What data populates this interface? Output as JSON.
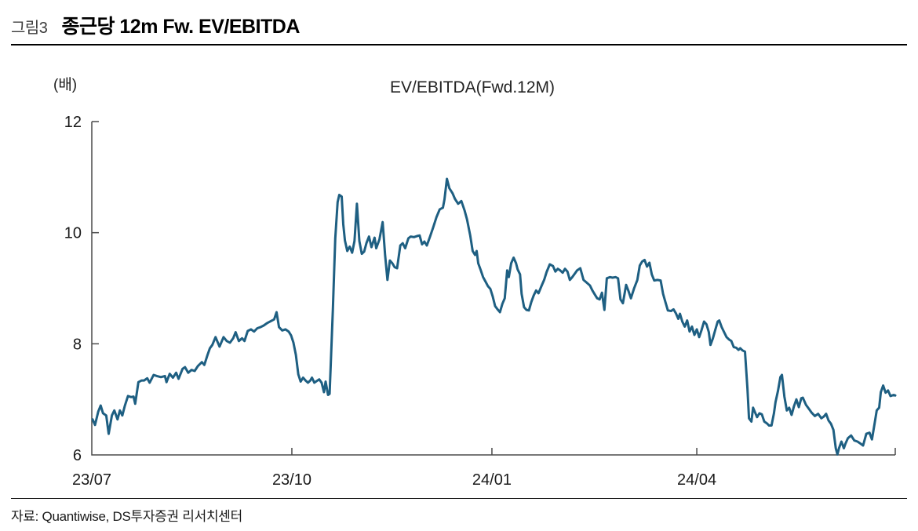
{
  "figure": {
    "label": "그림3",
    "title": "종근당 12m Fw. EV/EBITDA"
  },
  "footer": {
    "source": "자료: Quantiwise, DS투자증권 리서치센터"
  },
  "chart_data": {
    "type": "line",
    "title": "EV/EBITDA(Fwd.12M)",
    "y_unit_label": "(배)",
    "ylim": [
      6,
      12
    ],
    "yticks": [
      12,
      10,
      8,
      6
    ],
    "x_range": [
      "2023-07",
      "2024-07"
    ],
    "xticks": [
      {
        "label": "23/07",
        "t": 0
      },
      {
        "label": "23/10",
        "t": 0.249
      },
      {
        "label": "24/01",
        "t": 0.498
      },
      {
        "label": "24/04",
        "t": 0.753
      },
      {
        "label": "",
        "t": 1
      }
    ],
    "grid": false,
    "legend": "none",
    "colors": {
      "line": "#1E5F82",
      "axis": "#4A4A4A",
      "text": "#1A1A1A"
    },
    "series": [
      {
        "name": "EV/EBITDA(Fwd.12M)",
        "points": [
          [
            0.001,
            6.64
          ],
          [
            0.004,
            6.54
          ],
          [
            0.008,
            6.78
          ],
          [
            0.011,
            6.89
          ],
          [
            0.014,
            6.75
          ],
          [
            0.018,
            6.71
          ],
          [
            0.021,
            6.38
          ],
          [
            0.025,
            6.71
          ],
          [
            0.028,
            6.8
          ],
          [
            0.032,
            6.64
          ],
          [
            0.035,
            6.8
          ],
          [
            0.038,
            6.71
          ],
          [
            0.041,
            6.88
          ],
          [
            0.045,
            7.06
          ],
          [
            0.049,
            7.04
          ],
          [
            0.052,
            7.05
          ],
          [
            0.054,
            6.92
          ],
          [
            0.058,
            7.31
          ],
          [
            0.062,
            7.34
          ],
          [
            0.065,
            7.34
          ],
          [
            0.069,
            7.38
          ],
          [
            0.072,
            7.3
          ],
          [
            0.077,
            7.44
          ],
          [
            0.081,
            7.42
          ],
          [
            0.086,
            7.4
          ],
          [
            0.091,
            7.42
          ],
          [
            0.093,
            7.31
          ],
          [
            0.097,
            7.46
          ],
          [
            0.101,
            7.39
          ],
          [
            0.105,
            7.48
          ],
          [
            0.108,
            7.37
          ],
          [
            0.113,
            7.55
          ],
          [
            0.116,
            7.58
          ],
          [
            0.12,
            7.48
          ],
          [
            0.124,
            7.53
          ],
          [
            0.128,
            7.51
          ],
          [
            0.132,
            7.6
          ],
          [
            0.137,
            7.67
          ],
          [
            0.14,
            7.62
          ],
          [
            0.144,
            7.8
          ],
          [
            0.147,
            7.92
          ],
          [
            0.15,
            7.98
          ],
          [
            0.154,
            8.12
          ],
          [
            0.159,
            7.95
          ],
          [
            0.164,
            8.12
          ],
          [
            0.168,
            8.05
          ],
          [
            0.172,
            8.02
          ],
          [
            0.176,
            8.1
          ],
          [
            0.179,
            8.21
          ],
          [
            0.183,
            8.05
          ],
          [
            0.187,
            8.1
          ],
          [
            0.19,
            8.05
          ],
          [
            0.194,
            8.23
          ],
          [
            0.198,
            8.26
          ],
          [
            0.202,
            8.22
          ],
          [
            0.206,
            8.28
          ],
          [
            0.21,
            8.3
          ],
          [
            0.214,
            8.33
          ],
          [
            0.218,
            8.37
          ],
          [
            0.223,
            8.41
          ],
          [
            0.227,
            8.44
          ],
          [
            0.23,
            8.57
          ],
          [
            0.233,
            8.3
          ],
          [
            0.237,
            8.24
          ],
          [
            0.241,
            8.26
          ],
          [
            0.245,
            8.22
          ],
          [
            0.248,
            8.15
          ],
          [
            0.251,
            8.02
          ],
          [
            0.254,
            7.8
          ],
          [
            0.257,
            7.45
          ],
          [
            0.26,
            7.32
          ],
          [
            0.263,
            7.39
          ],
          [
            0.266,
            7.34
          ],
          [
            0.269,
            7.3
          ],
          [
            0.272,
            7.34
          ],
          [
            0.274,
            7.39
          ],
          [
            0.277,
            7.3
          ],
          [
            0.28,
            7.33
          ],
          [
            0.283,
            7.36
          ],
          [
            0.286,
            7.3
          ],
          [
            0.289,
            7.13
          ],
          [
            0.291,
            7.32
          ],
          [
            0.294,
            7.08
          ],
          [
            0.296,
            7.1
          ],
          [
            0.3,
            8.6
          ],
          [
            0.303,
            9.9
          ],
          [
            0.306,
            10.55
          ],
          [
            0.308,
            10.68
          ],
          [
            0.311,
            10.65
          ],
          [
            0.313,
            10.15
          ],
          [
            0.315,
            9.86
          ],
          [
            0.318,
            9.67
          ],
          [
            0.321,
            9.75
          ],
          [
            0.324,
            9.64
          ],
          [
            0.327,
            9.85
          ],
          [
            0.33,
            10.52
          ],
          [
            0.333,
            9.85
          ],
          [
            0.336,
            9.62
          ],
          [
            0.339,
            9.66
          ],
          [
            0.342,
            9.82
          ],
          [
            0.345,
            9.93
          ],
          [
            0.348,
            9.74
          ],
          [
            0.352,
            9.91
          ],
          [
            0.354,
            9.72
          ],
          [
            0.358,
            9.88
          ],
          [
            0.362,
            10.19
          ],
          [
            0.365,
            9.6
          ],
          [
            0.368,
            9.15
          ],
          [
            0.371,
            9.5
          ],
          [
            0.374,
            9.45
          ],
          [
            0.377,
            9.38
          ],
          [
            0.38,
            9.36
          ],
          [
            0.384,
            9.77
          ],
          [
            0.387,
            9.81
          ],
          [
            0.39,
            9.72
          ],
          [
            0.394,
            9.9
          ],
          [
            0.397,
            9.93
          ],
          [
            0.401,
            9.92
          ],
          [
            0.405,
            9.94
          ],
          [
            0.408,
            9.95
          ],
          [
            0.411,
            9.79
          ],
          [
            0.414,
            9.84
          ],
          [
            0.417,
            9.77
          ],
          [
            0.421,
            9.93
          ],
          [
            0.425,
            10.1
          ],
          [
            0.429,
            10.28
          ],
          [
            0.433,
            10.42
          ],
          [
            0.437,
            10.45
          ],
          [
            0.439,
            10.6
          ],
          [
            0.442,
            10.97
          ],
          [
            0.445,
            10.8
          ],
          [
            0.449,
            10.71
          ],
          [
            0.452,
            10.61
          ],
          [
            0.456,
            10.52
          ],
          [
            0.46,
            10.57
          ],
          [
            0.464,
            10.4
          ],
          [
            0.467,
            10.24
          ],
          [
            0.471,
            9.95
          ],
          [
            0.474,
            9.67
          ],
          [
            0.477,
            9.6
          ],
          [
            0.479,
            9.67
          ],
          [
            0.481,
            9.45
          ],
          [
            0.484,
            9.33
          ],
          [
            0.487,
            9.2
          ],
          [
            0.49,
            9.12
          ],
          [
            0.493,
            9.04
          ],
          [
            0.496,
            8.99
          ],
          [
            0.499,
            8.85
          ],
          [
            0.502,
            8.68
          ],
          [
            0.505,
            8.62
          ],
          [
            0.508,
            8.57
          ],
          [
            0.511,
            8.72
          ],
          [
            0.514,
            8.82
          ],
          [
            0.517,
            9.32
          ],
          [
            0.519,
            9.2
          ],
          [
            0.522,
            9.45
          ],
          [
            0.525,
            9.55
          ],
          [
            0.528,
            9.45
          ],
          [
            0.53,
            9.34
          ],
          [
            0.533,
            9.25
          ],
          [
            0.535,
            8.9
          ],
          [
            0.538,
            8.66
          ],
          [
            0.541,
            8.61
          ],
          [
            0.544,
            8.6
          ],
          [
            0.547,
            8.75
          ],
          [
            0.55,
            8.87
          ],
          [
            0.553,
            8.96
          ],
          [
            0.556,
            8.91
          ],
          [
            0.56,
            9.05
          ],
          [
            0.563,
            9.15
          ],
          [
            0.566,
            9.29
          ],
          [
            0.57,
            9.43
          ],
          [
            0.574,
            9.4
          ],
          [
            0.577,
            9.3
          ],
          [
            0.58,
            9.35
          ],
          [
            0.583,
            9.32
          ],
          [
            0.586,
            9.28
          ],
          [
            0.589,
            9.35
          ],
          [
            0.592,
            9.3
          ],
          [
            0.595,
            9.15
          ],
          [
            0.598,
            9.2
          ],
          [
            0.602,
            9.28
          ],
          [
            0.604,
            9.32
          ],
          [
            0.608,
            9.36
          ],
          [
            0.612,
            9.15
          ],
          [
            0.616,
            9.1
          ],
          [
            0.62,
            9.05
          ],
          [
            0.623,
            8.96
          ],
          [
            0.626,
            8.89
          ],
          [
            0.629,
            8.82
          ],
          [
            0.632,
            8.8
          ],
          [
            0.635,
            8.92
          ],
          [
            0.638,
            8.61
          ],
          [
            0.641,
            9.18
          ],
          [
            0.645,
            9.2
          ],
          [
            0.648,
            9.19
          ],
          [
            0.652,
            9.2
          ],
          [
            0.655,
            9.18
          ],
          [
            0.658,
            8.8
          ],
          [
            0.661,
            8.73
          ],
          [
            0.665,
            9.06
          ],
          [
            0.668,
            8.95
          ],
          [
            0.671,
            8.82
          ],
          [
            0.675,
            9.0
          ],
          [
            0.679,
            9.15
          ],
          [
            0.682,
            9.41
          ],
          [
            0.685,
            9.48
          ],
          [
            0.688,
            9.51
          ],
          [
            0.691,
            9.39
          ],
          [
            0.694,
            9.46
          ],
          [
            0.697,
            9.25
          ],
          [
            0.7,
            9.14
          ],
          [
            0.704,
            9.15
          ],
          [
            0.708,
            9.14
          ],
          [
            0.711,
            8.9
          ],
          [
            0.714,
            8.75
          ],
          [
            0.717,
            8.6
          ],
          [
            0.721,
            8.59
          ],
          [
            0.724,
            8.62
          ],
          [
            0.727,
            8.55
          ],
          [
            0.73,
            8.45
          ],
          [
            0.732,
            8.54
          ],
          [
            0.735,
            8.4
          ],
          [
            0.738,
            8.31
          ],
          [
            0.741,
            8.42
          ],
          [
            0.744,
            8.22
          ],
          [
            0.747,
            8.31
          ],
          [
            0.75,
            8.16
          ],
          [
            0.753,
            8.26
          ],
          [
            0.756,
            8.12
          ],
          [
            0.759,
            8.25
          ],
          [
            0.762,
            8.4
          ],
          [
            0.765,
            8.35
          ],
          [
            0.768,
            8.21
          ],
          [
            0.77,
            7.98
          ],
          [
            0.773,
            8.1
          ],
          [
            0.776,
            8.25
          ],
          [
            0.779,
            8.4
          ],
          [
            0.781,
            8.42
          ],
          [
            0.784,
            8.3
          ],
          [
            0.787,
            8.21
          ],
          [
            0.79,
            8.12
          ],
          [
            0.793,
            8.08
          ],
          [
            0.796,
            8.05
          ],
          [
            0.799,
            7.94
          ],
          [
            0.802,
            7.93
          ],
          [
            0.805,
            7.89
          ],
          [
            0.807,
            7.92
          ],
          [
            0.81,
            7.88
          ],
          [
            0.813,
            7.86
          ],
          [
            0.816,
            7.2
          ],
          [
            0.818,
            6.66
          ],
          [
            0.821,
            6.6
          ],
          [
            0.823,
            6.85
          ],
          [
            0.826,
            6.75
          ],
          [
            0.828,
            6.68
          ],
          [
            0.831,
            6.75
          ],
          [
            0.834,
            6.73
          ],
          [
            0.837,
            6.6
          ],
          [
            0.84,
            6.57
          ],
          [
            0.843,
            6.53
          ],
          [
            0.846,
            6.53
          ],
          [
            0.849,
            6.75
          ],
          [
            0.851,
            6.95
          ],
          [
            0.854,
            7.15
          ],
          [
            0.857,
            7.4
          ],
          [
            0.859,
            7.44
          ],
          [
            0.862,
            7.05
          ],
          [
            0.865,
            6.8
          ],
          [
            0.868,
            6.85
          ],
          [
            0.871,
            6.72
          ],
          [
            0.874,
            6.88
          ],
          [
            0.877,
            7.0
          ],
          [
            0.88,
            6.86
          ],
          [
            0.883,
            7.02
          ],
          [
            0.885,
            7.03
          ],
          [
            0.889,
            6.9
          ],
          [
            0.893,
            6.82
          ],
          [
            0.896,
            6.76
          ],
          [
            0.9,
            6.7
          ],
          [
            0.904,
            6.74
          ],
          [
            0.908,
            6.66
          ],
          [
            0.911,
            6.69
          ],
          [
            0.914,
            6.74
          ],
          [
            0.917,
            6.62
          ],
          [
            0.92,
            6.56
          ],
          [
            0.923,
            6.45
          ],
          [
            0.926,
            6.12
          ],
          [
            0.928,
            6.01
          ],
          [
            0.93,
            6.12
          ],
          [
            0.933,
            6.24
          ],
          [
            0.936,
            6.12
          ],
          [
            0.938,
            6.2
          ],
          [
            0.941,
            6.3
          ],
          [
            0.945,
            6.35
          ],
          [
            0.949,
            6.26
          ],
          [
            0.953,
            6.24
          ],
          [
            0.957,
            6.2
          ],
          [
            0.96,
            6.17
          ],
          [
            0.964,
            6.38
          ],
          [
            0.968,
            6.4
          ],
          [
            0.971,
            6.28
          ],
          [
            0.974,
            6.54
          ],
          [
            0.977,
            6.8
          ],
          [
            0.98,
            6.85
          ],
          [
            0.982,
            7.13
          ],
          [
            0.985,
            7.25
          ],
          [
            0.988,
            7.12
          ],
          [
            0.991,
            7.16
          ],
          [
            0.994,
            7.06
          ],
          [
            0.998,
            7.08
          ],
          [
            1.0,
            7.07
          ]
        ]
      }
    ]
  }
}
